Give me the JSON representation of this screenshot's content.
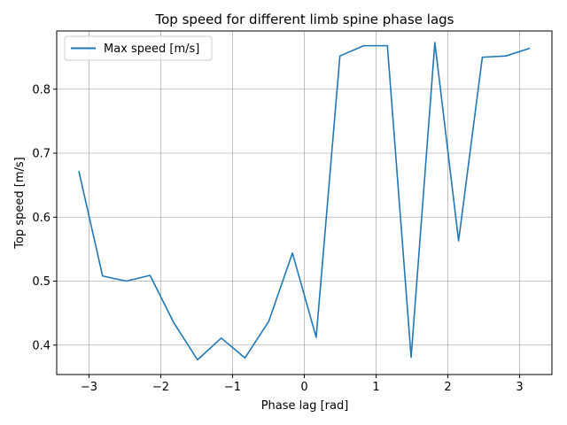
{
  "chart_data": {
    "type": "line",
    "title": "Top speed for different limb spine phase lags",
    "xlabel": "Phase lag [rad]",
    "ylabel": "Top speed [m/s]",
    "xlim": [
      -3.45,
      3.45
    ],
    "ylim": [
      0.354,
      0.891
    ],
    "xticks": [
      -3,
      -2,
      -1,
      0,
      1,
      2,
      3
    ],
    "xtick_labels": [
      "−3",
      "−2",
      "−1",
      "0",
      "1",
      "2",
      "3"
    ],
    "yticks": [
      0.4,
      0.5,
      0.6,
      0.7,
      0.8
    ],
    "ytick_labels": [
      "0.4",
      "0.5",
      "0.6",
      "0.7",
      "0.8"
    ],
    "grid": true,
    "legend_position": "upper-left",
    "series": [
      {
        "name": "Max speed [m/s]",
        "color": "#1f77b4",
        "x": [
          -3.1416,
          -2.8109,
          -2.4802,
          -2.1495,
          -1.8188,
          -1.4881,
          -1.1574,
          -0.8267,
          -0.496,
          -0.1653,
          0.1653,
          0.496,
          0.8267,
          1.1574,
          1.4881,
          1.8188,
          2.1495,
          2.4802,
          2.8109,
          3.1416
        ],
        "y": [
          0.672,
          0.508,
          0.5,
          0.509,
          0.435,
          0.377,
          0.411,
          0.38,
          0.437,
          0.544,
          0.412,
          0.852,
          0.868,
          0.868,
          0.381,
          0.873,
          0.563,
          0.85,
          0.852,
          0.864
        ]
      }
    ]
  }
}
